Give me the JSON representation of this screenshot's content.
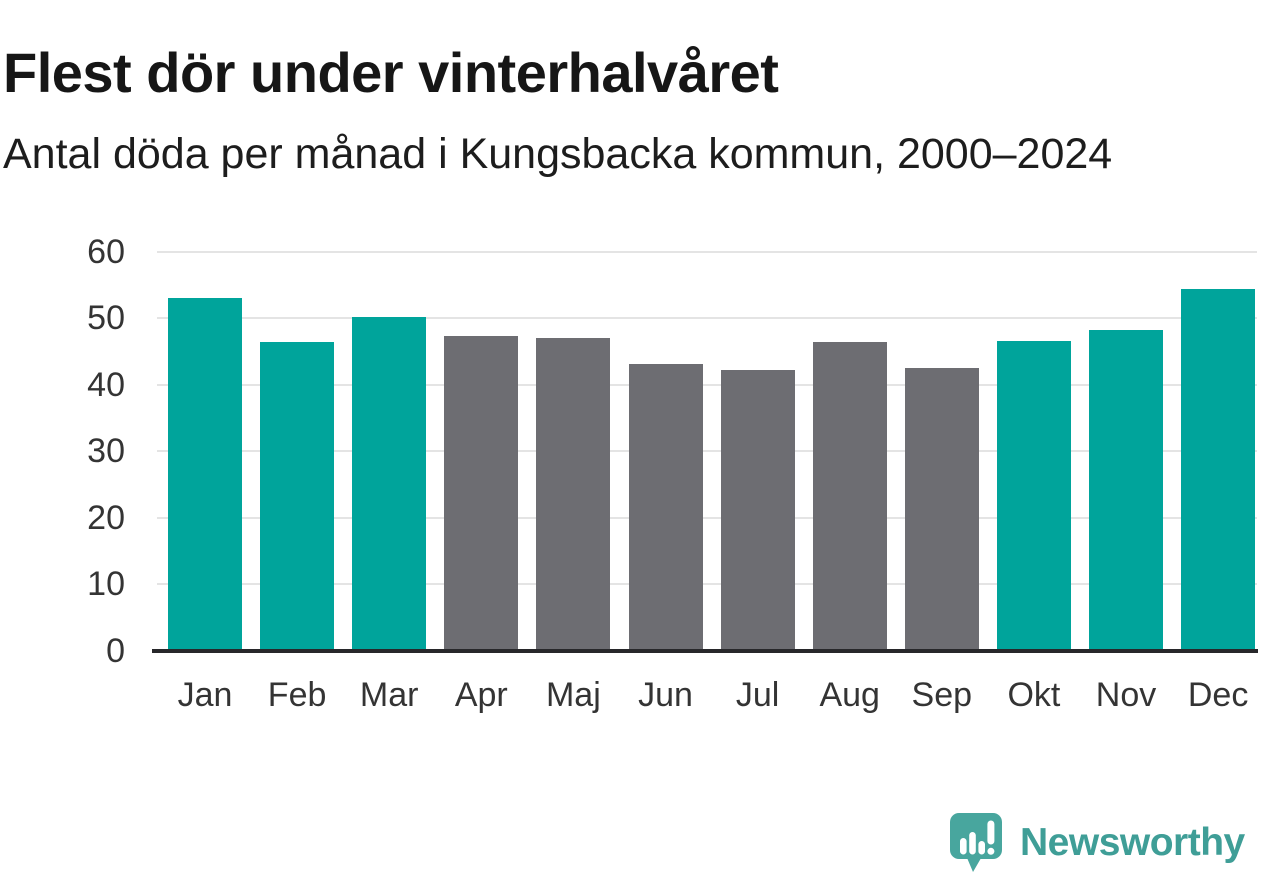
{
  "header": {
    "title": "Flest dör under vinterhalvåret",
    "subtitle": "Antal döda per månad i Kungsbacka kommun, 2000–2024"
  },
  "chart_data": {
    "type": "bar",
    "title": "Flest dör under vinterhalvåret",
    "subtitle": "Antal döda per månad i Kungsbacka kommun, 2000–2024",
    "categories": [
      "Jan",
      "Feb",
      "Mar",
      "Apr",
      "Maj",
      "Jun",
      "Jul",
      "Aug",
      "Sep",
      "Okt",
      "Nov",
      "Dec"
    ],
    "values": [
      53.1,
      46.4,
      50.2,
      47.4,
      47.1,
      43.2,
      42.3,
      46.4,
      42.6,
      46.6,
      48.2,
      54.5
    ],
    "bar_color_keys": [
      "winter",
      "winter",
      "winter",
      "summer",
      "summer",
      "summer",
      "summer",
      "summer",
      "summer",
      "winter",
      "winter",
      "winter"
    ],
    "colors": {
      "winter": "#00a49b",
      "summer": "#6d6d72"
    },
    "xlabel": "",
    "ylabel": "",
    "ylim": [
      0,
      60
    ],
    "yticks": [
      0,
      10,
      20,
      30,
      40,
      50,
      60
    ],
    "grid": "horizontal",
    "legend": "none",
    "gridline_color": "#e4e4e4",
    "axis_line_color": "#27272a",
    "tick_label_color": "#343434"
  },
  "branding": {
    "logo_text": "Newsworthy",
    "logo_text_color": "#3f9e97",
    "logo_bubble_color": "#48a69e",
    "logo_icon": "newsworthy-speech-bubble-bar-chart-icon"
  }
}
